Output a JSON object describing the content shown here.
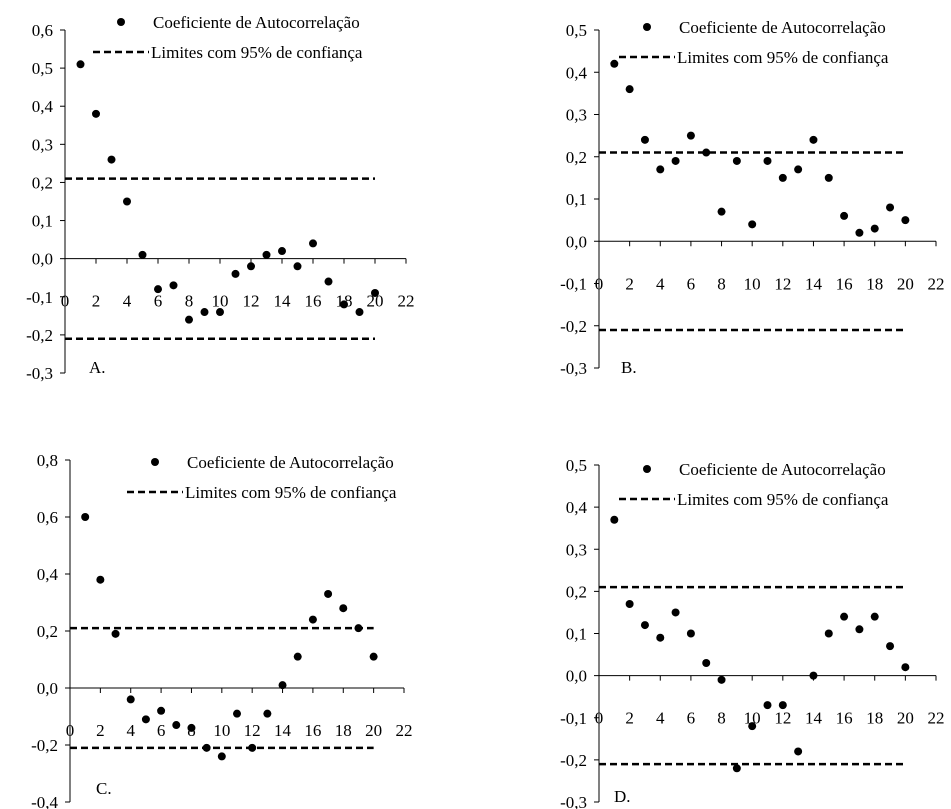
{
  "chart_data": [
    {
      "type": "scatter",
      "panel_label": "A.",
      "xlim": [
        0,
        22
      ],
      "ylim": [
        -0.3,
        0.6
      ],
      "x_ticks": [
        "0",
        "2",
        "4",
        "6",
        "8",
        "10",
        "12",
        "14",
        "16",
        "18",
        "20",
        "22"
      ],
      "y_ticks": [
        "-0,3",
        "-0,2",
        "-0,1",
        "0,0",
        "0,1",
        "0,2",
        "0,3",
        "0,4",
        "0,5",
        "0,6"
      ],
      "legend": {
        "points": "Coeficiente de Autocorrelação",
        "limits": "Limites com 95% de confiança"
      },
      "series": [
        {
          "name": "Coeficiente de Autocorrelação",
          "x": [
            1,
            2,
            3,
            4,
            5,
            6,
            7,
            8,
            9,
            10,
            11,
            12,
            13,
            14,
            15,
            16,
            17,
            18,
            19,
            20
          ],
          "values": [
            0.51,
            0.38,
            0.26,
            0.15,
            0.01,
            -0.08,
            -0.07,
            -0.16,
            -0.14,
            -0.14,
            -0.04,
            -0.02,
            0.01,
            0.02,
            -0.02,
            0.04,
            -0.06,
            -0.12,
            -0.14,
            -0.09
          ]
        }
      ],
      "confidence_limits": {
        "upper": 0.21,
        "lower": -0.21,
        "x_range": [
          0,
          20
        ]
      }
    },
    {
      "type": "scatter",
      "panel_label": "B.",
      "xlim": [
        0,
        22
      ],
      "ylim": [
        -0.3,
        0.5
      ],
      "x_ticks": [
        "0",
        "2",
        "4",
        "6",
        "8",
        "10",
        "12",
        "14",
        "16",
        "18",
        "20",
        "22"
      ],
      "y_ticks": [
        "-0,3",
        "-0,2",
        "-0,1",
        "0,0",
        "0,1",
        "0,2",
        "0,3",
        "0,4",
        "0,5"
      ],
      "legend": {
        "points": "Coeficiente de Autocorrelação",
        "limits": "Limites com 95% de confiança"
      },
      "series": [
        {
          "name": "Coeficiente de Autocorrelação",
          "x": [
            1,
            2,
            3,
            4,
            5,
            6,
            7,
            8,
            9,
            10,
            11,
            12,
            13,
            14,
            15,
            16,
            17,
            18,
            19,
            20
          ],
          "values": [
            0.42,
            0.36,
            0.24,
            0.17,
            0.19,
            0.25,
            0.21,
            0.07,
            0.19,
            0.04,
            0.19,
            0.15,
            0.17,
            0.24,
            0.15,
            0.06,
            0.02,
            0.03,
            0.08,
            0.05
          ]
        }
      ],
      "confidence_limits": {
        "upper": 0.21,
        "lower": -0.21,
        "x_range": [
          0,
          20
        ]
      }
    },
    {
      "type": "scatter",
      "panel_label": "C.",
      "xlim": [
        0,
        22
      ],
      "ylim": [
        -0.4,
        0.8
      ],
      "x_ticks": [
        "0",
        "2",
        "4",
        "6",
        "8",
        "10",
        "12",
        "14",
        "16",
        "18",
        "20",
        "22"
      ],
      "y_ticks": [
        "-0,4",
        "-0,2",
        "0,0",
        "0,2",
        "0,4",
        "0,6",
        "0,8"
      ],
      "legend": {
        "points": "Coeficiente de Autocorrelação",
        "limits": "Limites com 95% de confiança"
      },
      "series": [
        {
          "name": "Coeficiente de Autocorrelação",
          "x": [
            1,
            2,
            3,
            4,
            5,
            6,
            7,
            8,
            9,
            10,
            11,
            12,
            13,
            14,
            15,
            16,
            17,
            18,
            19,
            20
          ],
          "values": [
            0.6,
            0.38,
            0.19,
            -0.04,
            -0.11,
            -0.08,
            -0.13,
            -0.14,
            -0.21,
            -0.24,
            -0.09,
            -0.21,
            -0.09,
            0.01,
            0.11,
            0.24,
            0.33,
            0.28,
            0.21,
            0.11
          ]
        }
      ],
      "confidence_limits": {
        "upper": 0.21,
        "lower": -0.21,
        "x_range": [
          0,
          20
        ]
      }
    },
    {
      "type": "scatter",
      "panel_label": "D.",
      "xlim": [
        0,
        22
      ],
      "ylim": [
        -0.3,
        0.5
      ],
      "x_ticks": [
        "0",
        "2",
        "4",
        "6",
        "8",
        "10",
        "12",
        "14",
        "16",
        "18",
        "20",
        "22"
      ],
      "y_ticks": [
        "-0,3",
        "-0,2",
        "-0,1",
        "0,0",
        "0,1",
        "0,2",
        "0,3",
        "0,4",
        "0,5"
      ],
      "legend": {
        "points": "Coeficiente de Autocorrelação",
        "limits": "Limites com 95% de confiança"
      },
      "series": [
        {
          "name": "Coeficiente de Autocorrelação",
          "x": [
            1,
            2,
            3,
            4,
            5,
            6,
            7,
            8,
            9,
            10,
            11,
            12,
            13,
            14,
            15,
            16,
            17,
            18,
            19,
            20
          ],
          "values": [
            0.37,
            0.17,
            0.12,
            0.09,
            0.15,
            0.1,
            0.03,
            -0.01,
            -0.22,
            -0.12,
            -0.07,
            -0.07,
            -0.18,
            0.0,
            0.1,
            0.14,
            0.11,
            0.14,
            0.07,
            0.02
          ]
        }
      ],
      "confidence_limits": {
        "upper": 0.21,
        "lower": -0.21,
        "x_range": [
          0,
          20
        ]
      }
    }
  ]
}
